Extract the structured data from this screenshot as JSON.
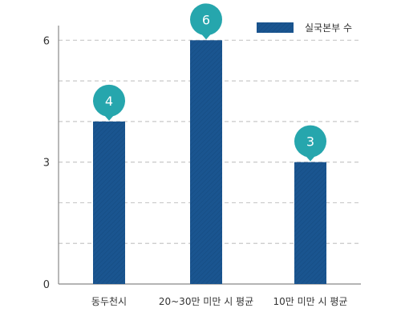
{
  "chart_data": {
    "type": "bar",
    "categories": [
      "동두천시",
      "20~30만 미만 시 평균",
      "10만 미만 시 평균"
    ],
    "series": [
      {
        "name": "실국본부 수",
        "values": [
          4,
          6,
          3
        ]
      }
    ],
    "ylim": [
      0,
      6.4
    ],
    "yticks": [
      0,
      3,
      6
    ],
    "grid": true,
    "legend_position": "top-right",
    "data_labels": [
      "4",
      "6",
      "3"
    ],
    "colors": {
      "bar": "#1a5590",
      "badge": "#26a6ad",
      "grid": "#c8c8c8",
      "axis": "#888888"
    }
  }
}
